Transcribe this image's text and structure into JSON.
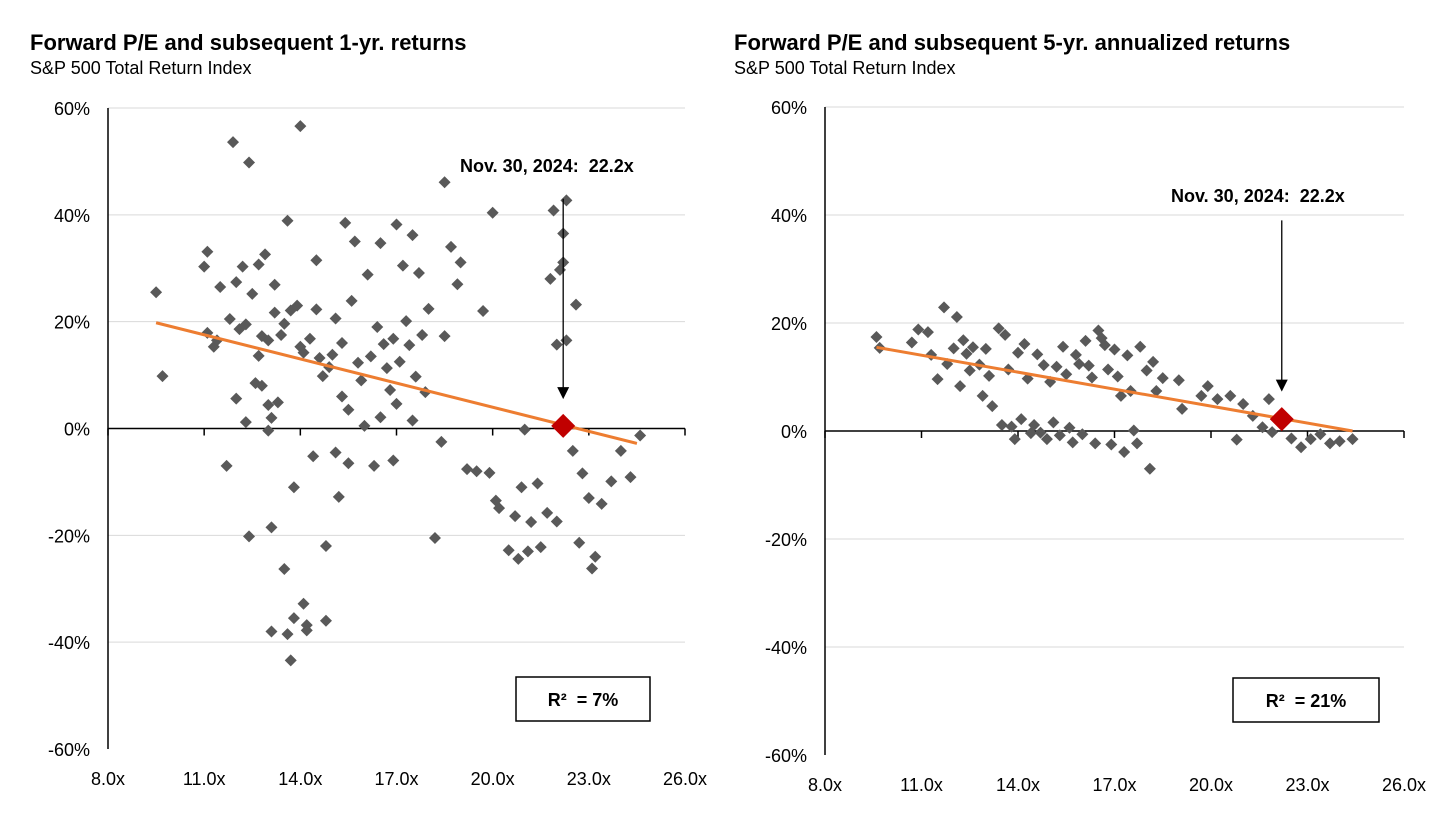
{
  "chart_data": [
    {
      "type": "scatter",
      "title": "Forward P/E and subsequent 1-yr. returns",
      "subtitle": "S&P 500 Total Return Index",
      "xlim": [
        8,
        26
      ],
      "ylim": [
        -60,
        60
      ],
      "x_ticks": [
        8,
        11,
        14,
        17,
        20,
        23,
        26
      ],
      "x_tick_labels": [
        "8.0x",
        "11.0x",
        "14.0x",
        "17.0x",
        "20.0x",
        "23.0x",
        "26.0x"
      ],
      "y_ticks": [
        60,
        40,
        20,
        0,
        -20,
        -40,
        -60
      ],
      "y_tick_labels": [
        "60%",
        "40%",
        "20%",
        "0%",
        "-20%",
        "-40%",
        "-60%"
      ],
      "grid": "horizontal",
      "marker_color": "#595959",
      "trend_color": "#ED7D31",
      "highlight_color": "#C00000",
      "trendline": [
        [
          9.5,
          19.8
        ],
        [
          24.5,
          -2.8
        ]
      ],
      "highlight": {
        "x": 22.2,
        "y": 0.5
      },
      "annotation": {
        "text": "Nov. 30, 2024:  22.2x",
        "arrow_from": [
          22.2,
          43
        ],
        "arrow_to": [
          22.2,
          5.5
        ]
      },
      "r2_label": "R²  = 7%",
      "points": [
        [
          9.5,
          25.5
        ],
        [
          9.7,
          9.8
        ],
        [
          11.0,
          30.3
        ],
        [
          11.1,
          33.1
        ],
        [
          11.1,
          17.9
        ],
        [
          11.3,
          15.3
        ],
        [
          11.4,
          16.5
        ],
        [
          11.5,
          26.5
        ],
        [
          11.7,
          -7
        ],
        [
          11.8,
          20.5
        ],
        [
          11.9,
          53.6
        ],
        [
          12.0,
          27.4
        ],
        [
          12.0,
          5.6
        ],
        [
          12.1,
          18.6
        ],
        [
          12.2,
          30.3
        ],
        [
          12.3,
          19.5
        ],
        [
          12.3,
          1.2
        ],
        [
          12.4,
          49.8
        ],
        [
          12.4,
          -20.2
        ],
        [
          12.5,
          25.2
        ],
        [
          12.6,
          8.5
        ],
        [
          12.7,
          13.6
        ],
        [
          12.7,
          30.7
        ],
        [
          12.8,
          17.3
        ],
        [
          12.8,
          8
        ],
        [
          12.9,
          32.6
        ],
        [
          13.0,
          -0.4
        ],
        [
          13.0,
          4.4
        ],
        [
          13.0,
          16.5
        ],
        [
          13.1,
          2
        ],
        [
          13.1,
          -18.5
        ],
        [
          13.1,
          -38
        ],
        [
          13.2,
          26.9
        ],
        [
          13.2,
          21.7
        ],
        [
          13.3,
          4.9
        ],
        [
          13.4,
          17.5
        ],
        [
          13.5,
          19.6
        ],
        [
          13.5,
          -26.3
        ],
        [
          13.6,
          38.9
        ],
        [
          13.6,
          -38.5
        ],
        [
          13.7,
          -43.4
        ],
        [
          13.7,
          22.1
        ],
        [
          13.8,
          -11
        ],
        [
          13.8,
          -35.5
        ],
        [
          13.9,
          23
        ],
        [
          14.0,
          56.6
        ],
        [
          14.0,
          15.3
        ],
        [
          14.1,
          14.2
        ],
        [
          14.1,
          -32.8
        ],
        [
          14.2,
          -36.8
        ],
        [
          14.2,
          -37.8
        ],
        [
          14.3,
          16.8
        ],
        [
          14.4,
          -5.2
        ],
        [
          14.5,
          31.5
        ],
        [
          14.5,
          22.3
        ],
        [
          14.6,
          13.2
        ],
        [
          14.7,
          9.8
        ],
        [
          14.8,
          -22
        ],
        [
          14.8,
          -36
        ],
        [
          14.9,
          11.5
        ],
        [
          15.0,
          13.8
        ],
        [
          15.1,
          -4.5
        ],
        [
          15.1,
          20.6
        ],
        [
          15.2,
          -12.8
        ],
        [
          15.3,
          6
        ],
        [
          15.3,
          16
        ],
        [
          15.4,
          38.5
        ],
        [
          15.5,
          3.5
        ],
        [
          15.5,
          -6.5
        ],
        [
          15.6,
          23.9
        ],
        [
          15.7,
          35
        ],
        [
          15.8,
          12.3
        ],
        [
          15.9,
          9
        ],
        [
          16.0,
          0.5
        ],
        [
          16.1,
          28.8
        ],
        [
          16.2,
          13.5
        ],
        [
          16.3,
          -7
        ],
        [
          16.4,
          19
        ],
        [
          16.5,
          34.7
        ],
        [
          16.5,
          2.1
        ],
        [
          16.6,
          15.8
        ],
        [
          16.7,
          11.3
        ],
        [
          16.8,
          7.2
        ],
        [
          16.9,
          -6
        ],
        [
          16.9,
          16.8
        ],
        [
          17.0,
          38.2
        ],
        [
          17.0,
          4.6
        ],
        [
          17.1,
          12.5
        ],
        [
          17.2,
          30.5
        ],
        [
          17.3,
          20.1
        ],
        [
          17.4,
          15.6
        ],
        [
          17.5,
          36.2
        ],
        [
          17.5,
          1.5
        ],
        [
          17.6,
          9.7
        ],
        [
          17.7,
          29.1
        ],
        [
          17.8,
          17.5
        ],
        [
          17.9,
          6.8
        ],
        [
          18.0,
          22.4
        ],
        [
          18.2,
          -20.5
        ],
        [
          18.4,
          -2.5
        ],
        [
          18.5,
          46.1
        ],
        [
          18.5,
          17.3
        ],
        [
          18.7,
          34
        ],
        [
          18.9,
          27
        ],
        [
          19.0,
          31.1
        ],
        [
          19.2,
          -7.6
        ],
        [
          19.5,
          -8
        ],
        [
          19.7,
          22
        ],
        [
          19.9,
          -8.3
        ],
        [
          20.0,
          40.4
        ],
        [
          20.1,
          -13.5
        ],
        [
          20.2,
          -14.9
        ],
        [
          20.5,
          -22.8
        ],
        [
          20.7,
          -16.4
        ],
        [
          20.8,
          -24.4
        ],
        [
          20.9,
          -11
        ],
        [
          21.0,
          -0.2
        ],
        [
          21.1,
          -23
        ],
        [
          21.2,
          -17.5
        ],
        [
          21.4,
          -10.3
        ],
        [
          21.5,
          -22.2
        ],
        [
          21.7,
          -15.8
        ],
        [
          21.8,
          28
        ],
        [
          21.9,
          40.8
        ],
        [
          22.0,
          -17.4
        ],
        [
          22.0,
          15.7
        ],
        [
          22.1,
          29.7
        ],
        [
          22.2,
          31.1
        ],
        [
          22.2,
          36.5
        ],
        [
          22.3,
          42.7
        ],
        [
          22.3,
          16.5
        ],
        [
          22.5,
          -4.2
        ],
        [
          22.6,
          23.2
        ],
        [
          22.7,
          -21.4
        ],
        [
          22.8,
          -8.4
        ],
        [
          23.0,
          -13
        ],
        [
          23.1,
          -26.2
        ],
        [
          23.2,
          -24
        ],
        [
          23.4,
          -14.1
        ],
        [
          23.7,
          -9.9
        ],
        [
          24.0,
          -4.2
        ],
        [
          24.3,
          -9.1
        ],
        [
          24.6,
          -1.3
        ]
      ]
    },
    {
      "type": "scatter",
      "title": "Forward P/E and subsequent 5-yr. annualized returns",
      "subtitle": "S&P 500 Total Return Index",
      "xlim": [
        8,
        26
      ],
      "ylim": [
        -60,
        60
      ],
      "x_ticks": [
        8,
        11,
        14,
        17,
        20,
        23,
        26
      ],
      "x_tick_labels": [
        "8.0x",
        "11.0x",
        "14.0x",
        "17.0x",
        "20.0x",
        "23.0x",
        "26.0x"
      ],
      "y_ticks": [
        60,
        40,
        20,
        0,
        -20,
        -40,
        -60
      ],
      "y_tick_labels": [
        "60%",
        "40%",
        "20%",
        "0%",
        "-20%",
        "-40%",
        "-60%"
      ],
      "grid": "horizontal",
      "marker_color": "#595959",
      "trend_color": "#ED7D31",
      "highlight_color": "#C00000",
      "trendline": [
        [
          9.6,
          15.5
        ],
        [
          24.4,
          0
        ]
      ],
      "highlight": {
        "x": 22.2,
        "y": 2.2
      },
      "annotation": {
        "text": "Nov. 30, 2024:  22.2x",
        "arrow_from": [
          22.2,
          39
        ],
        "arrow_to": [
          22.2,
          7.3
        ]
      },
      "r2_label": "R²  = 21%",
      "points": [
        [
          9.6,
          17.4
        ],
        [
          9.7,
          15.4
        ],
        [
          10.7,
          16.4
        ],
        [
          10.9,
          18.8
        ],
        [
          11.2,
          18.3
        ],
        [
          11.3,
          14.1
        ],
        [
          11.5,
          9.6
        ],
        [
          11.7,
          22.9
        ],
        [
          11.8,
          12.4
        ],
        [
          12.0,
          15.3
        ],
        [
          12.1,
          21.1
        ],
        [
          12.2,
          8.3
        ],
        [
          12.3,
          16.8
        ],
        [
          12.4,
          14.3
        ],
        [
          12.5,
          11.2
        ],
        [
          12.6,
          15.5
        ],
        [
          12.8,
          12.3
        ],
        [
          12.9,
          6.5
        ],
        [
          13.0,
          15.2
        ],
        [
          13.1,
          10.2
        ],
        [
          13.2,
          4.6
        ],
        [
          13.4,
          19
        ],
        [
          13.5,
          1.1
        ],
        [
          13.6,
          17.8
        ],
        [
          13.7,
          11.4
        ],
        [
          13.8,
          0.8
        ],
        [
          13.9,
          -1.5
        ],
        [
          14.0,
          14.5
        ],
        [
          14.1,
          2.2
        ],
        [
          14.2,
          16.1
        ],
        [
          14.3,
          9.7
        ],
        [
          14.4,
          -0.4
        ],
        [
          14.5,
          1.1
        ],
        [
          14.6,
          14.2
        ],
        [
          14.7,
          -0.3
        ],
        [
          14.8,
          12.2
        ],
        [
          14.9,
          -1.5
        ],
        [
          15.0,
          9.1
        ],
        [
          15.1,
          1.6
        ],
        [
          15.2,
          11.9
        ],
        [
          15.3,
          -0.8
        ],
        [
          15.4,
          15.6
        ],
        [
          15.5,
          10.5
        ],
        [
          15.6,
          0.6
        ],
        [
          15.7,
          -2.1
        ],
        [
          15.8,
          14.1
        ],
        [
          15.9,
          12.4
        ],
        [
          16.0,
          -0.6
        ],
        [
          16.1,
          16.7
        ],
        [
          16.2,
          12.1
        ],
        [
          16.3,
          9.9
        ],
        [
          16.4,
          -2.3
        ],
        [
          16.5,
          18.6
        ],
        [
          16.6,
          17.2
        ],
        [
          16.7,
          15.9
        ],
        [
          16.8,
          11.4
        ],
        [
          16.9,
          -2.5
        ],
        [
          17.0,
          15.1
        ],
        [
          17.1,
          10.1
        ],
        [
          17.2,
          6.5
        ],
        [
          17.3,
          -3.9
        ],
        [
          17.4,
          14
        ],
        [
          17.5,
          7.4
        ],
        [
          17.6,
          0.1
        ],
        [
          17.7,
          -2.3
        ],
        [
          17.8,
          15.6
        ],
        [
          18.0,
          11.2
        ],
        [
          18.1,
          -7
        ],
        [
          18.2,
          12.8
        ],
        [
          18.3,
          7.4
        ],
        [
          18.5,
          9.8
        ],
        [
          19.0,
          9.4
        ],
        [
          19.1,
          4.1
        ],
        [
          19.7,
          6.5
        ],
        [
          19.9,
          8.3
        ],
        [
          20.2,
          5.9
        ],
        [
          20.6,
          6.5
        ],
        [
          20.8,
          -1.6
        ],
        [
          21.0,
          5
        ],
        [
          21.3,
          2.8
        ],
        [
          21.6,
          0.7
        ],
        [
          21.8,
          5.9
        ],
        [
          21.9,
          -0.2
        ],
        [
          22.5,
          -1.4
        ],
        [
          22.8,
          -3
        ],
        [
          23.1,
          -1.5
        ],
        [
          23.4,
          -0.6
        ],
        [
          23.7,
          -2.3
        ],
        [
          24.0,
          -1.9
        ],
        [
          24.4,
          -1.5
        ]
      ]
    }
  ]
}
